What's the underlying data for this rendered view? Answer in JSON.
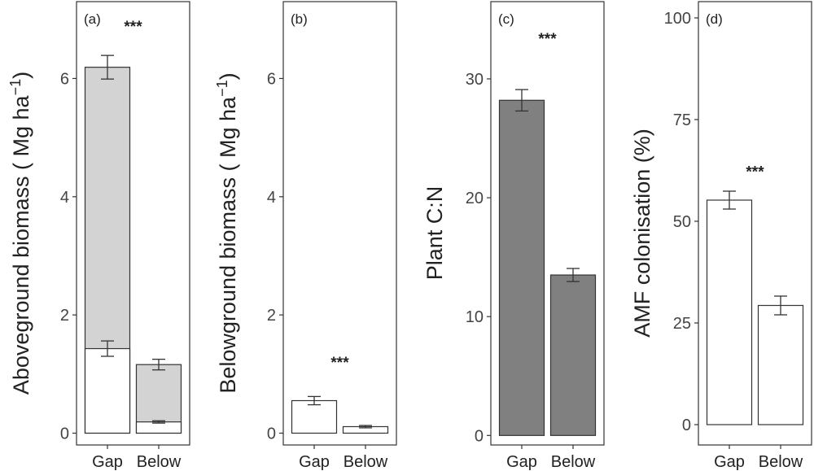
{
  "chart_data": [
    {
      "type": "bar",
      "stacked": true,
      "panel_label": "(a)",
      "ylabel": "Aboveground biomass ( Mg ha",
      "ylabel_sup": "−1",
      "ylabel_close": ")",
      "categories": [
        "Gap",
        "Below"
      ],
      "series": [
        {
          "values": [
            1.43,
            0.19
          ],
          "errors": [
            0.13,
            0.02
          ],
          "color": "#ffffff"
        },
        {
          "values": [
            6.19,
            1.16
          ],
          "errors": [
            0.2,
            0.09
          ],
          "color": "#d3d3d3"
        }
      ],
      "annotation": "***",
      "annotation_y": 6.9,
      "ylim": [
        -0.2,
        7.3
      ],
      "yticks": [
        0,
        2,
        4,
        6
      ],
      "ytick_labels": [
        "0",
        "2",
        "4",
        "6"
      ],
      "grid": false
    },
    {
      "type": "bar",
      "panel_label": "(b)",
      "ylabel": "Belowground biomass ( Mg ha",
      "ylabel_sup": "−1",
      "ylabel_close": ")",
      "categories": [
        "Gap",
        "Below"
      ],
      "series": [
        {
          "values": [
            0.55,
            0.11
          ],
          "errors": [
            0.07,
            0.02
          ],
          "color": "#ffffff"
        }
      ],
      "annotation": "***",
      "annotation_y": 1.22,
      "ylim": [
        -0.2,
        7.3
      ],
      "yticks": [
        0,
        2,
        4,
        6
      ],
      "ytick_labels": [
        "0",
        "2",
        "4",
        "6"
      ],
      "grid": false
    },
    {
      "type": "bar",
      "panel_label": "(c)",
      "ylabel": "Plant C:N",
      "categories": [
        "Gap",
        "Below"
      ],
      "series": [
        {
          "values": [
            28.2,
            13.5
          ],
          "errors": [
            0.9,
            0.55
          ],
          "color": "#808080"
        }
      ],
      "annotation": "***",
      "annotation_y": 33.5,
      "ylim": [
        -0.8,
        36.5
      ],
      "yticks": [
        0,
        10,
        20,
        30
      ],
      "ytick_labels": [
        "0",
        "10",
        "20",
        "30"
      ],
      "grid": false
    },
    {
      "type": "bar",
      "panel_label": "(d)",
      "ylabel": "AMF colonisation (%)",
      "categories": [
        "Gap",
        "Below"
      ],
      "series": [
        {
          "values": [
            55.2,
            29.3
          ],
          "errors": [
            2.2,
            2.3
          ],
          "color": "#ffffff"
        }
      ],
      "annotation": "***",
      "annotation_y": 62.5,
      "ylim": [
        -5,
        104
      ],
      "yticks": [
        0,
        25,
        50,
        75,
        100
      ],
      "ytick_labels": [
        "0",
        "25",
        "50",
        "75",
        "100"
      ],
      "grid": false
    }
  ]
}
